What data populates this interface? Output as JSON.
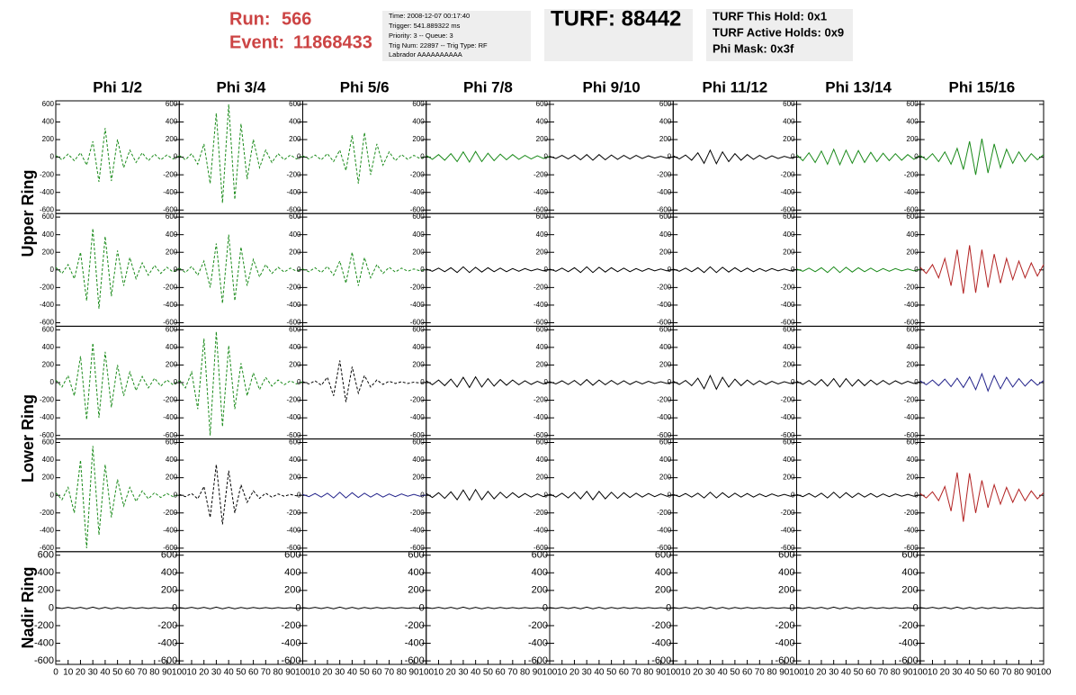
{
  "header": {
    "run_label": "Run:",
    "run": "566",
    "event_label": "Event:",
    "event": "11868433",
    "info": [
      "Time: 2008-12-07 00:17:40",
      "Trigger: 541.889322 ms",
      "Priority: 3 -- Queue: 3",
      "Trig Num: 22897 -- Trig Type: RF",
      "Labrador AAAAAAAAAA"
    ],
    "turf": "TURF: 88442",
    "turf_info": [
      "TURF This Hold: 0x1",
      "TURF Active Holds: 0x9",
      "Phi Mask: 0x3f"
    ]
  },
  "columns": [
    "Phi 1/2",
    "Phi 3/4",
    "Phi 5/6",
    "Phi 7/8",
    "Phi 9/10",
    "Phi 11/12",
    "Phi 13/14",
    "Phi 15/16"
  ],
  "ring_labels": [
    "Upper Ring",
    "Lower Ring",
    "Nadir Ring"
  ],
  "axes": {
    "ylim": [
      -640,
      640
    ],
    "yticks": [
      -600,
      -400,
      -200,
      0,
      200,
      400,
      600
    ],
    "xlim": [
      0,
      100
    ],
    "xticks": [
      0,
      10,
      20,
      30,
      40,
      50,
      60,
      70,
      80,
      90,
      100
    ],
    "x": [
      0,
      5,
      10,
      15,
      20,
      25,
      30,
      35,
      40,
      45,
      50,
      55,
      60,
      65,
      70,
      75,
      80,
      85,
      90,
      95,
      100
    ]
  },
  "chart_data": [
    {
      "type": "line",
      "color": "#1a8a1a",
      "dashed": true,
      "values": [
        20,
        -30,
        35,
        -40,
        50,
        -90,
        180,
        -280,
        330,
        -270,
        200,
        -120,
        80,
        -60,
        50,
        -40,
        35,
        -30,
        25,
        -20,
        15
      ]
    },
    {
      "type": "line",
      "color": "#1a8a1a",
      "dashed": true,
      "values": [
        20,
        -30,
        40,
        -80,
        150,
        -300,
        500,
        -520,
        600,
        -480,
        380,
        -250,
        200,
        -120,
        80,
        -60,
        40,
        -30,
        25,
        -20,
        15
      ]
    },
    {
      "type": "line",
      "color": "#1a8a1a",
      "dashed": true,
      "values": [
        15,
        -20,
        25,
        -30,
        40,
        -50,
        80,
        -150,
        250,
        -300,
        280,
        -200,
        150,
        -90,
        60,
        -40,
        30,
        -25,
        20,
        -15,
        10
      ]
    },
    {
      "type": "line",
      "color": "#1a8a1a",
      "dashed": false,
      "values": [
        20,
        -25,
        30,
        -35,
        40,
        -50,
        60,
        -55,
        65,
        -50,
        45,
        -40,
        35,
        -30,
        30,
        -25,
        20,
        -20,
        15,
        -15,
        10
      ]
    },
    {
      "type": "line",
      "color": "#000000",
      "dashed": false,
      "values": [
        10,
        -15,
        20,
        -20,
        25,
        -30,
        30,
        -35,
        30,
        -30,
        25,
        -25,
        20,
        -20,
        20,
        -15,
        15,
        -10,
        10,
        -10,
        5
      ]
    },
    {
      "type": "line",
      "color": "#000000",
      "dashed": false,
      "values": [
        15,
        -20,
        25,
        -35,
        50,
        -70,
        80,
        -75,
        60,
        -50,
        40,
        -35,
        30,
        -25,
        20,
        -20,
        15,
        -15,
        10,
        -10,
        5
      ]
    },
    {
      "type": "line",
      "color": "#1a8a1a",
      "dashed": false,
      "values": [
        30,
        -40,
        50,
        -60,
        70,
        -80,
        90,
        -85,
        80,
        -70,
        75,
        -60,
        55,
        -50,
        45,
        -40,
        40,
        -35,
        30,
        -25,
        20
      ]
    },
    {
      "type": "line",
      "color": "#1a8a1a",
      "dashed": false,
      "values": [
        20,
        -30,
        40,
        -50,
        60,
        -80,
        100,
        -140,
        180,
        -200,
        210,
        -180,
        150,
        -120,
        90,
        -70,
        60,
        -50,
        40,
        -30,
        30
      ]
    },
    {
      "type": "line",
      "color": "#1a8a1a",
      "dashed": true,
      "values": [
        30,
        -40,
        60,
        -100,
        200,
        -350,
        470,
        -440,
        380,
        -300,
        220,
        -180,
        140,
        -100,
        80,
        -60,
        50,
        -40,
        30,
        -25,
        20
      ]
    },
    {
      "type": "line",
      "color": "#1a8a1a",
      "dashed": true,
      "values": [
        20,
        -30,
        40,
        -60,
        100,
        -200,
        300,
        -380,
        400,
        -350,
        260,
        -180,
        120,
        -80,
        60,
        -40,
        30,
        -25,
        20,
        -15,
        10
      ]
    },
    {
      "type": "line",
      "color": "#1a8a1a",
      "dashed": true,
      "values": [
        10,
        -20,
        25,
        -30,
        40,
        -60,
        100,
        -150,
        200,
        -180,
        140,
        -90,
        60,
        -40,
        30,
        -25,
        20,
        -15,
        10,
        -10,
        5
      ]
    },
    {
      "type": "line",
      "color": "#000000",
      "dashed": false,
      "values": [
        10,
        -15,
        20,
        -20,
        25,
        -30,
        35,
        -30,
        30,
        -25,
        25,
        -20,
        20,
        -20,
        15,
        -15,
        15,
        -10,
        10,
        -10,
        5
      ]
    },
    {
      "type": "line",
      "color": "#000000",
      "dashed": false,
      "values": [
        10,
        -15,
        20,
        -20,
        25,
        -30,
        35,
        -30,
        30,
        -25,
        25,
        -20,
        20,
        -20,
        15,
        -15,
        15,
        -10,
        10,
        -10,
        5
      ]
    },
    {
      "type": "line",
      "color": "#000000",
      "dashed": false,
      "values": [
        10,
        -15,
        20,
        -20,
        25,
        -30,
        35,
        -30,
        30,
        -25,
        25,
        -20,
        20,
        -20,
        15,
        -15,
        15,
        -10,
        10,
        -10,
        5
      ]
    },
    {
      "type": "line",
      "color": "#1a8a1a",
      "dashed": false,
      "values": [
        10,
        -15,
        20,
        -20,
        25,
        -30,
        35,
        -30,
        30,
        -25,
        25,
        -20,
        20,
        -20,
        15,
        -15,
        15,
        -10,
        10,
        -10,
        5
      ]
    },
    {
      "type": "line",
      "color": "#b22222",
      "dashed": false,
      "values": [
        30,
        -40,
        60,
        -90,
        130,
        -180,
        230,
        -270,
        280,
        -260,
        230,
        -200,
        180,
        -150,
        130,
        -110,
        100,
        -90,
        80,
        -70,
        60
      ]
    },
    {
      "type": "line",
      "color": "#1a8a1a",
      "dashed": true,
      "values": [
        30,
        -50,
        80,
        -150,
        300,
        -420,
        450,
        -400,
        350,
        -280,
        200,
        -150,
        120,
        -90,
        70,
        -60,
        50,
        -40,
        30,
        -25,
        20
      ]
    },
    {
      "type": "line",
      "color": "#1a8a1a",
      "dashed": true,
      "values": [
        30,
        -60,
        120,
        -300,
        500,
        -600,
        580,
        -500,
        420,
        -300,
        220,
        -150,
        110,
        -80,
        60,
        -40,
        30,
        -25,
        20,
        -15,
        10
      ]
    },
    {
      "type": "line",
      "color": "#000000",
      "dashed": true,
      "values": [
        10,
        -15,
        20,
        -30,
        60,
        -150,
        250,
        -220,
        180,
        -120,
        80,
        -50,
        30,
        -20,
        15,
        -10,
        10,
        -10,
        5,
        -5,
        5
      ]
    },
    {
      "type": "line",
      "color": "#000000",
      "dashed": false,
      "values": [
        20,
        -25,
        30,
        -35,
        40,
        -50,
        60,
        -55,
        65,
        -50,
        45,
        -40,
        35,
        -30,
        30,
        -25,
        20,
        -20,
        15,
        -15,
        10
      ]
    },
    {
      "type": "line",
      "color": "#000000",
      "dashed": false,
      "values": [
        10,
        -15,
        20,
        -20,
        25,
        -30,
        35,
        -30,
        30,
        -25,
        25,
        -20,
        20,
        -20,
        15,
        -15,
        15,
        -10,
        10,
        -10,
        5
      ]
    },
    {
      "type": "line",
      "color": "#000000",
      "dashed": false,
      "values": [
        15,
        -20,
        25,
        -35,
        50,
        -70,
        80,
        -75,
        60,
        -50,
        40,
        -35,
        30,
        -25,
        20,
        -20,
        15,
        -15,
        10,
        -10,
        5
      ]
    },
    {
      "type": "line",
      "color": "#000000",
      "dashed": false,
      "values": [
        15,
        -20,
        25,
        -30,
        35,
        -40,
        45,
        -50,
        45,
        -40,
        35,
        -35,
        30,
        -25,
        25,
        -20,
        20,
        -15,
        15,
        -10,
        10
      ]
    },
    {
      "type": "line",
      "color": "#22228a",
      "dashed": false,
      "values": [
        20,
        -25,
        30,
        -35,
        40,
        -45,
        50,
        -55,
        65,
        -80,
        100,
        -95,
        80,
        -70,
        60,
        -50,
        45,
        -40,
        35,
        -30,
        25
      ]
    },
    {
      "type": "line",
      "color": "#1a8a1a",
      "dashed": true,
      "values": [
        30,
        -50,
        90,
        -200,
        400,
        -600,
        560,
        -450,
        350,
        -250,
        180,
        -120,
        90,
        -70,
        50,
        -40,
        30,
        -25,
        20,
        -15,
        10
      ]
    },
    {
      "type": "line",
      "color": "#000000",
      "dashed": true,
      "values": [
        10,
        -15,
        20,
        -40,
        100,
        -250,
        350,
        -330,
        280,
        -200,
        120,
        -80,
        50,
        -35,
        25,
        -20,
        15,
        -10,
        10,
        -5,
        5
      ]
    },
    {
      "type": "line",
      "color": "#22228a",
      "dashed": false,
      "values": [
        10,
        -15,
        20,
        -20,
        25,
        -30,
        35,
        -30,
        30,
        -25,
        25,
        -20,
        20,
        -20,
        15,
        -15,
        15,
        -10,
        10,
        -10,
        5
      ]
    },
    {
      "type": "line",
      "color": "#000000",
      "dashed": false,
      "values": [
        20,
        -25,
        30,
        -35,
        40,
        -50,
        60,
        -55,
        65,
        -50,
        45,
        -40,
        35,
        -30,
        30,
        -25,
        20,
        -20,
        15,
        -15,
        10
      ]
    },
    {
      "type": "line",
      "color": "#000000",
      "dashed": false,
      "values": [
        15,
        -20,
        25,
        -30,
        35,
        -40,
        45,
        -50,
        45,
        -40,
        35,
        -35,
        30,
        -25,
        25,
        -20,
        20,
        -15,
        15,
        -10,
        10
      ]
    },
    {
      "type": "line",
      "color": "#000000",
      "dashed": false,
      "values": [
        10,
        -15,
        20,
        -20,
        25,
        -30,
        35,
        -30,
        30,
        -25,
        25,
        -20,
        20,
        -20,
        15,
        -15,
        15,
        -10,
        10,
        -10,
        5
      ]
    },
    {
      "type": "line",
      "color": "#000000",
      "dashed": false,
      "values": [
        10,
        -15,
        20,
        -20,
        25,
        -30,
        35,
        -30,
        30,
        -25,
        25,
        -20,
        20,
        -20,
        15,
        -15,
        15,
        -10,
        10,
        -10,
        5
      ]
    },
    {
      "type": "line",
      "color": "#b22222",
      "dashed": false,
      "values": [
        20,
        -30,
        40,
        -60,
        100,
        -180,
        260,
        -300,
        250,
        -200,
        170,
        -140,
        120,
        -100,
        90,
        -80,
        70,
        -60,
        50,
        -40,
        30
      ]
    },
    {
      "type": "line",
      "color": "#000000",
      "dashed": false,
      "values": [
        5,
        -5,
        8,
        -6,
        8,
        -8,
        10,
        -8,
        8,
        -8,
        6,
        -6,
        6,
        -5,
        5,
        -5,
        5,
        -4,
        4,
        -4,
        3
      ]
    },
    {
      "type": "line",
      "color": "#000000",
      "dashed": false,
      "values": [
        5,
        -5,
        8,
        -6,
        8,
        -8,
        10,
        -8,
        8,
        -8,
        6,
        -6,
        6,
        -5,
        5,
        -5,
        5,
        -4,
        4,
        -4,
        3
      ]
    },
    {
      "type": "line",
      "color": "#000000",
      "dashed": false,
      "values": [
        5,
        -5,
        8,
        -6,
        8,
        -8,
        10,
        -8,
        8,
        -8,
        6,
        -6,
        6,
        -5,
        5,
        -5,
        5,
        -4,
        4,
        -4,
        3
      ]
    },
    {
      "type": "line",
      "color": "#000000",
      "dashed": false,
      "values": [
        5,
        -5,
        8,
        -6,
        8,
        -8,
        10,
        -8,
        8,
        -8,
        6,
        -6,
        6,
        -5,
        5,
        -5,
        5,
        -4,
        4,
        -4,
        3
      ]
    },
    {
      "type": "line",
      "color": "#000000",
      "dashed": false,
      "values": [
        5,
        -5,
        8,
        -6,
        8,
        -8,
        10,
        -8,
        8,
        -8,
        6,
        -6,
        6,
        -5,
        5,
        -5,
        5,
        -4,
        4,
        -4,
        3
      ]
    },
    {
      "type": "line",
      "color": "#000000",
      "dashed": false,
      "values": [
        5,
        -5,
        8,
        -6,
        8,
        -8,
        10,
        -8,
        8,
        -8,
        6,
        -6,
        6,
        -5,
        5,
        -5,
        5,
        -4,
        4,
        -4,
        3
      ]
    },
    {
      "type": "line",
      "color": "#000000",
      "dashed": false,
      "values": [
        5,
        -5,
        8,
        -6,
        8,
        -8,
        10,
        -8,
        8,
        -8,
        6,
        -6,
        6,
        -5,
        5,
        -5,
        5,
        -4,
        4,
        -4,
        3
      ]
    },
    {
      "type": "line",
      "color": "#000000",
      "dashed": false,
      "values": [
        5,
        -5,
        8,
        -6,
        8,
        -8,
        10,
        -8,
        8,
        -8,
        6,
        -6,
        6,
        -5,
        5,
        -5,
        5,
        -4,
        4,
        -4,
        3
      ]
    }
  ]
}
